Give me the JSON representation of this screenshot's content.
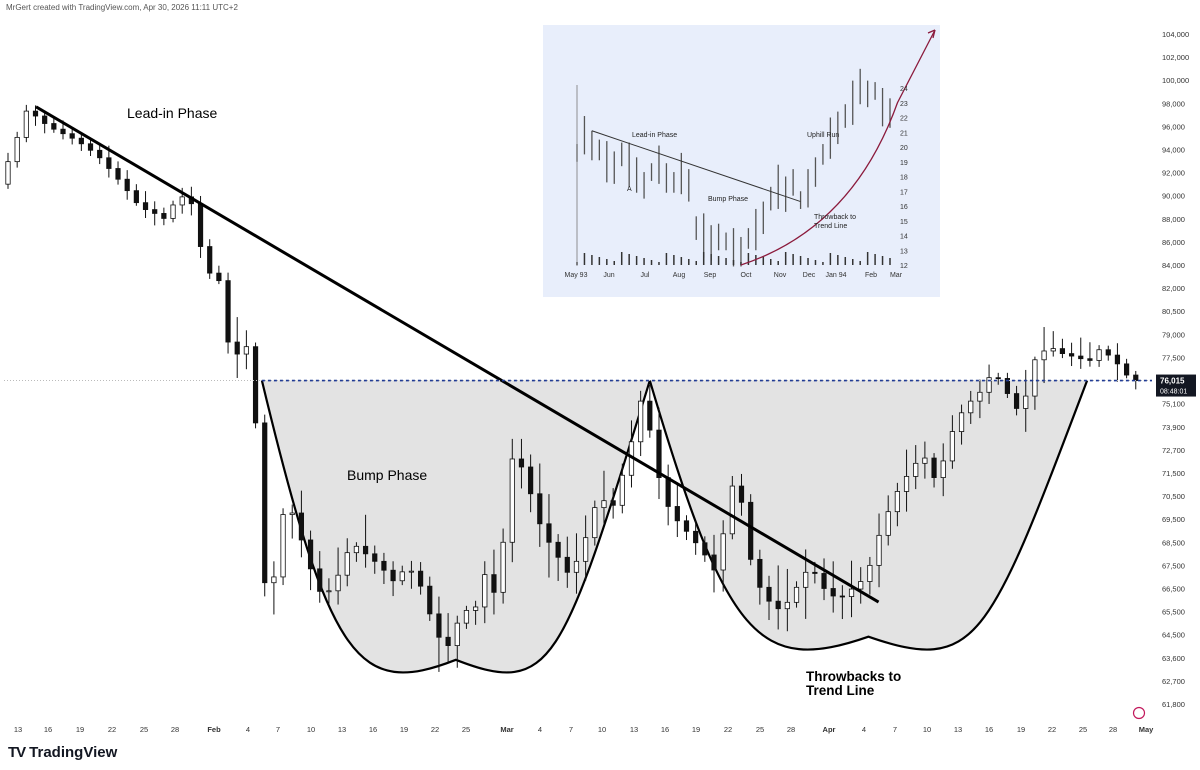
{
  "header": {
    "credit": "MrGert created with TradingView.com, Apr 30, 2026 11:11 UTC+2"
  },
  "brand": {
    "name": "TradingView",
    "logo": "TV"
  },
  "colors": {
    "up": "#111111",
    "down": "#111111",
    "price_line": "#1f3a93",
    "bump_fill": "#e3e3e3",
    "inset_bg": "#e8eefb",
    "curve": "#8b1a3c"
  },
  "chart_data": [
    {
      "type": "candlestick",
      "title": "",
      "annotations": [
        "Lead-in Phase",
        "Bump Phase",
        "Throwbacks to Trend Line"
      ],
      "y_ticks": [
        "104,000",
        "102,000",
        "100,000",
        "98,000",
        "96,000",
        "94,000",
        "92,000",
        "90,000",
        "88,000",
        "86,000",
        "84,000",
        "82,000",
        "80,500",
        "79,000",
        "77,500",
        "76,015",
        "75,100",
        "73,900",
        "72,700",
        "71,500",
        "70,500",
        "69,500",
        "68,500",
        "67,500",
        "66,500",
        "65,500",
        "64,500",
        "63,600",
        "62,700",
        "61,800"
      ],
      "price_tag": {
        "value": "76,015",
        "countdown": "08:48:01"
      },
      "x_ticks": [
        "13",
        "16",
        "19",
        "22",
        "25",
        "28",
        "Feb",
        "4",
        "7",
        "10",
        "13",
        "16",
        "19",
        "22",
        "25",
        "Mar",
        "4",
        "7",
        "10",
        "13",
        "16",
        "19",
        "22",
        "25",
        "28",
        "Apr",
        "4",
        "7",
        "10",
        "13",
        "16",
        "19",
        "22",
        "25",
        "28",
        "May"
      ],
      "ylim": [
        61800,
        104000
      ],
      "current_price": 76015,
      "price_path": [
        [
          0,
          91000
        ],
        [
          4,
          94000
        ],
        [
          8,
          97500
        ],
        [
          14,
          96000
        ],
        [
          22,
          94800
        ],
        [
          28,
          93500
        ],
        [
          35,
          91000
        ],
        [
          40,
          89000
        ],
        [
          44,
          88500
        ],
        [
          47,
          88000
        ],
        [
          50,
          89500
        ],
        [
          54,
          90300
        ],
        [
          56,
          87000
        ],
        [
          59,
          83500
        ],
        [
          63,
          82500
        ],
        [
          65,
          78500
        ],
        [
          68,
          77600
        ],
        [
          70,
          78500
        ],
        [
          72,
          75500
        ],
        [
          74,
          72000
        ],
        [
          76,
          64500
        ],
        [
          77,
          67500
        ],
        [
          79,
          66500
        ],
        [
          81,
          70500
        ],
        [
          84,
          69500
        ],
        [
          88,
          67500
        ],
        [
          92,
          66000
        ],
        [
          96,
          67000
        ],
        [
          100,
          68500
        ],
        [
          104,
          68000
        ],
        [
          108,
          67500
        ],
        [
          112,
          66800
        ],
        [
          116,
          67500
        ],
        [
          120,
          66500
        ],
        [
          124,
          64500
        ],
        [
          128,
          64000
        ],
        [
          132,
          66000
        ],
        [
          134,
          64500
        ],
        [
          137,
          67500
        ],
        [
          140,
          66000
        ],
        [
          143,
          68500
        ],
        [
          146,
          72800
        ],
        [
          150,
          71000
        ],
        [
          154,
          69000
        ],
        [
          158,
          68000
        ],
        [
          162,
          67000
        ],
        [
          166,
          68500
        ],
        [
          170,
          70500
        ],
        [
          174,
          70000
        ],
        [
          178,
          72000
        ],
        [
          182,
          75200
        ],
        [
          185,
          73500
        ],
        [
          188,
          70500
        ],
        [
          192,
          69500
        ],
        [
          196,
          68800
        ],
        [
          200,
          68000
        ],
        [
          204,
          67000
        ],
        [
          207,
          71000
        ],
        [
          210,
          70800
        ],
        [
          214,
          67000
        ],
        [
          218,
          66000
        ],
        [
          222,
          65500
        ],
        [
          226,
          66500
        ],
        [
          230,
          67500
        ],
        [
          234,
          66500
        ],
        [
          238,
          66000
        ],
        [
          242,
          66500
        ],
        [
          246,
          67000
        ],
        [
          250,
          69000
        ],
        [
          254,
          70500
        ],
        [
          258,
          71500
        ],
        [
          262,
          72500
        ],
        [
          266,
          71000
        ],
        [
          270,
          73500
        ],
        [
          274,
          75000
        ],
        [
          278,
          75500
        ],
        [
          282,
          76500
        ],
        [
          286,
          75500
        ],
        [
          290,
          74500
        ],
        [
          294,
          77500
        ],
        [
          298,
          78200
        ],
        [
          302,
          77700
        ],
        [
          306,
          77500
        ],
        [
          309,
          77200
        ],
        [
          312,
          78000
        ],
        [
          315,
          77600
        ],
        [
          318,
          76900
        ],
        [
          321,
          76015
        ]
      ],
      "trend_line": [
        [
          0,
          97700
        ],
        [
          210,
          66000
        ]
      ],
      "bump_level": 76015
    },
    {
      "type": "line",
      "title": "",
      "x_ticks": [
        "May 93",
        "Jun",
        "Jul",
        "Aug",
        "Sep",
        "Oct",
        "Nov",
        "Dec",
        "Jan 94",
        "Feb",
        "Mar"
      ],
      "y_ticks": [
        24,
        23,
        22,
        21,
        20,
        19,
        18,
        17,
        16,
        15,
        14,
        13,
        12
      ],
      "ylim": [
        12,
        24
      ],
      "annotations": [
        "Lead-in Phase",
        "A",
        "Bump Phase",
        "Uphill Run",
        "Throwback to Trend Line"
      ],
      "series": [
        {
          "values": [
            19.6,
            20.8,
            20.1,
            19.8,
            19.0,
            18.6,
            19.5,
            18.8,
            18.1,
            17.4,
            18.3,
            18.8,
            17.9,
            17.6,
            18.2,
            17.4,
            14.5,
            14.0,
            13.5,
            13.9,
            13.6,
            13.2,
            12.9,
            13.8,
            14.4,
            15.2,
            16.5,
            17.3,
            16.8,
            17.6,
            16.4,
            17.2,
            18.3,
            19.5,
            20.6,
            21.3,
            22.1,
            23.0,
            24.1,
            23.6,
            23.8,
            22.7,
            22.3
          ]
        }
      ]
    }
  ]
}
